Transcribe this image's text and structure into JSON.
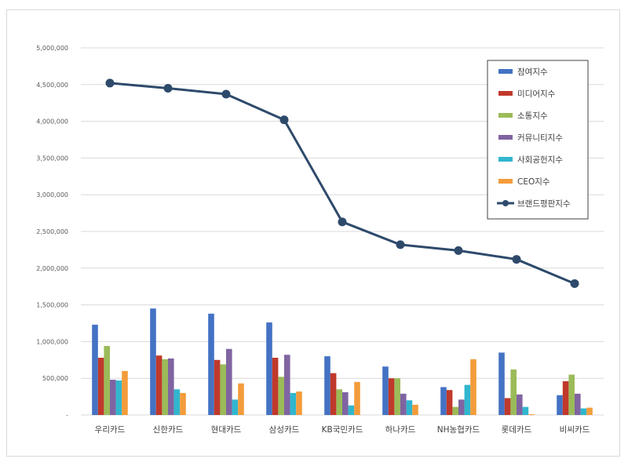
{
  "chart_data": {
    "type": "bar",
    "categories": [
      "우리카드",
      "신한카드",
      "현대카드",
      "삼성카드",
      "KB국민카드",
      "하나카드",
      "NH농협카드",
      "롯데카드",
      "비씨카드"
    ],
    "series": [
      {
        "name": "참여지수",
        "color": "#4472C4",
        "values": [
          1230000,
          1450000,
          1380000,
          1260000,
          800000,
          660000,
          380000,
          850000,
          270000
        ]
      },
      {
        "name": "미디어지수",
        "color": "#C0392B",
        "values": [
          780000,
          810000,
          750000,
          780000,
          570000,
          500000,
          340000,
          230000,
          460000
        ]
      },
      {
        "name": "소통지수",
        "color": "#9BBB59",
        "values": [
          940000,
          760000,
          690000,
          520000,
          350000,
          500000,
          110000,
          620000,
          550000
        ]
      },
      {
        "name": "커뮤니티지수",
        "color": "#8064A2",
        "values": [
          480000,
          770000,
          900000,
          820000,
          310000,
          290000,
          210000,
          280000,
          290000
        ]
      },
      {
        "name": "사회공헌지수",
        "color": "#31B6CE",
        "values": [
          470000,
          350000,
          210000,
          300000,
          130000,
          200000,
          410000,
          110000,
          90000
        ]
      },
      {
        "name": "CEO지수",
        "color": "#F39C3C",
        "values": [
          600000,
          300000,
          430000,
          320000,
          450000,
          140000,
          760000,
          10000,
          100000
        ]
      }
    ],
    "line_series": {
      "name": "브랜드평판지수",
      "color": "#2E4A6B",
      "values": [
        4520000,
        4450000,
        4370000,
        4020000,
        2630000,
        2320000,
        2240000,
        2120000,
        1790000
      ]
    },
    "ylim": [
      0,
      5000000
    ],
    "yticks": [
      "-",
      "500,000",
      "1,000,000",
      "1,500,000",
      "2,000,000",
      "2,500,000",
      "3,000,000",
      "3,500,000",
      "4,000,000",
      "4,500,000",
      "5,000,000"
    ],
    "grid": true,
    "legend_position": "top-right"
  }
}
